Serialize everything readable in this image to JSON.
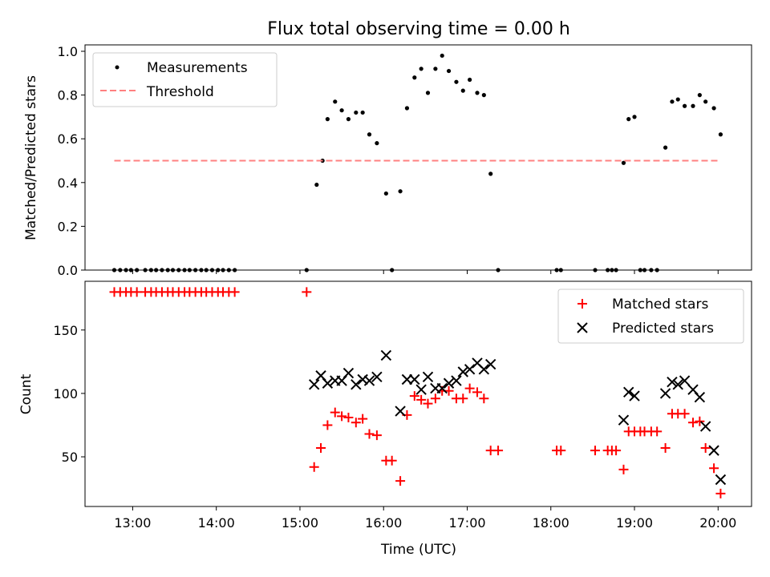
{
  "chart_data": [
    {
      "type": "scatter",
      "title": "Flux total observing time = 0.00 h",
      "xlabel": "",
      "ylabel": "Matched/Predicted stars",
      "ylim": [
        0.0,
        1.0
      ],
      "yticks": [
        "0.0",
        "0.2",
        "0.4",
        "0.6",
        "0.8",
        "1.0"
      ],
      "x_time_range_hours": [
        12.43,
        20.4
      ],
      "legend_position": "top-left",
      "series": [
        {
          "name": "Measurements",
          "color": "#000000",
          "marker": "dot",
          "x_hours": [
            12.78,
            12.85,
            12.92,
            12.98,
            13.05,
            13.15,
            13.22,
            13.28,
            13.35,
            13.42,
            13.48,
            13.55,
            13.62,
            13.68,
            13.75,
            13.82,
            13.88,
            13.95,
            14.02,
            14.08,
            14.15,
            14.22,
            15.08,
            15.2,
            15.27,
            15.33,
            15.42,
            15.5,
            15.58,
            15.67,
            15.75,
            15.83,
            15.92,
            16.03,
            16.1,
            16.2,
            16.28,
            16.37,
            16.45,
            16.53,
            16.62,
            16.7,
            16.78,
            16.87,
            16.95,
            17.03,
            17.12,
            17.2,
            17.28,
            17.37,
            18.07,
            18.12,
            18.53,
            18.68,
            18.73,
            18.78,
            18.87,
            18.93,
            19.0,
            19.07,
            19.12,
            19.2,
            19.27,
            19.37,
            19.45,
            19.52,
            19.6,
            19.7,
            19.78,
            19.85,
            19.95,
            20.03
          ],
          "y": [
            0,
            0,
            0,
            0,
            0,
            0,
            0,
            0,
            0,
            0,
            0,
            0,
            0,
            0,
            0,
            0,
            0,
            0,
            0,
            0,
            0,
            0,
            0,
            0.39,
            0.5,
            0.69,
            0.77,
            0.73,
            0.69,
            0.72,
            0.72,
            0.62,
            0.58,
            0.35,
            0,
            0.36,
            0.74,
            0.88,
            0.92,
            0.81,
            0.92,
            0.98,
            0.91,
            0.86,
            0.82,
            0.87,
            0.81,
            0.8,
            0.44,
            0,
            0,
            0,
            0,
            0,
            0,
            0,
            0.49,
            0.69,
            0.7,
            0,
            0,
            0,
            0,
            0.56,
            0.77,
            0.78,
            0.75,
            0.75,
            0.8,
            0.77,
            0.74,
            0.62
          ]
        },
        {
          "name": "Threshold",
          "color": "#ff8080",
          "style": "dashed",
          "x_hours": [
            12.78,
            20.03
          ],
          "y": [
            0.5,
            0.5
          ]
        }
      ]
    },
    {
      "type": "scatter",
      "title": "",
      "xlabel": "Time (UTC)",
      "ylabel": "Count",
      "ylim": [
        14,
        184
      ],
      "yticks": [
        "50",
        "100",
        "150"
      ],
      "x_ticks": [
        "13:00",
        "14:00",
        "15:00",
        "16:00",
        "17:00",
        "18:00",
        "19:00",
        "20:00"
      ],
      "x_time_range_hours": [
        12.43,
        20.4
      ],
      "legend_position": "top-right",
      "series": [
        {
          "name": "Matched stars",
          "color": "#ff0000",
          "marker": "plus",
          "x_hours": [
            12.78,
            12.85,
            12.92,
            12.98,
            13.05,
            13.15,
            13.22,
            13.28,
            13.35,
            13.42,
            13.48,
            13.55,
            13.62,
            13.68,
            13.75,
            13.82,
            13.88,
            13.95,
            14.02,
            14.08,
            14.15,
            14.22,
            15.08,
            15.17,
            15.25,
            15.33,
            15.42,
            15.5,
            15.58,
            15.67,
            15.75,
            15.83,
            15.92,
            16.03,
            16.1,
            16.2,
            16.28,
            16.37,
            16.45,
            16.53,
            16.62,
            16.7,
            16.78,
            16.87,
            16.95,
            17.03,
            17.12,
            17.2,
            17.28,
            17.37,
            18.07,
            18.12,
            18.53,
            18.68,
            18.73,
            18.78,
            18.87,
            18.93,
            19.0,
            19.07,
            19.12,
            19.2,
            19.27,
            19.37,
            19.45,
            19.52,
            19.6,
            19.7,
            19.78,
            19.85,
            19.95,
            20.03
          ],
          "y": [
            180,
            180,
            180,
            180,
            180,
            180,
            180,
            180,
            180,
            180,
            180,
            180,
            180,
            180,
            180,
            180,
            180,
            180,
            180,
            180,
            180,
            180,
            180,
            42,
            57,
            75,
            85,
            82,
            81,
            77,
            80,
            68,
            67,
            47,
            47,
            31,
            83,
            98,
            95,
            92,
            96,
            102,
            102,
            96,
            96,
            104,
            101,
            96,
            55,
            55,
            55,
            55,
            55,
            55,
            55,
            55,
            40,
            70,
            70,
            70,
            70,
            70,
            70,
            57,
            84,
            84,
            84,
            77,
            78,
            57,
            41,
            21
          ]
        },
        {
          "name": "Predicted stars",
          "color": "#000000",
          "marker": "x",
          "x_hours": [
            15.17,
            15.25,
            15.33,
            15.42,
            15.5,
            15.58,
            15.67,
            15.75,
            15.83,
            15.92,
            16.03,
            16.2,
            16.28,
            16.37,
            16.45,
            16.53,
            16.62,
            16.7,
            16.78,
            16.87,
            16.95,
            17.03,
            17.12,
            17.2,
            17.28,
            18.87,
            18.93,
            19.0,
            19.37,
            19.45,
            19.52,
            19.6,
            19.7,
            19.78,
            19.85,
            19.95,
            20.03
          ],
          "y": [
            107,
            114,
            108,
            110,
            110,
            116,
            107,
            111,
            110,
            113,
            130,
            86,
            111,
            111,
            103,
            113,
            104,
            104,
            108,
            110,
            117,
            119,
            124,
            119,
            123,
            79,
            101,
            98,
            100,
            109,
            107,
            110,
            103,
            97,
            74,
            55,
            32
          ]
        }
      ]
    }
  ]
}
